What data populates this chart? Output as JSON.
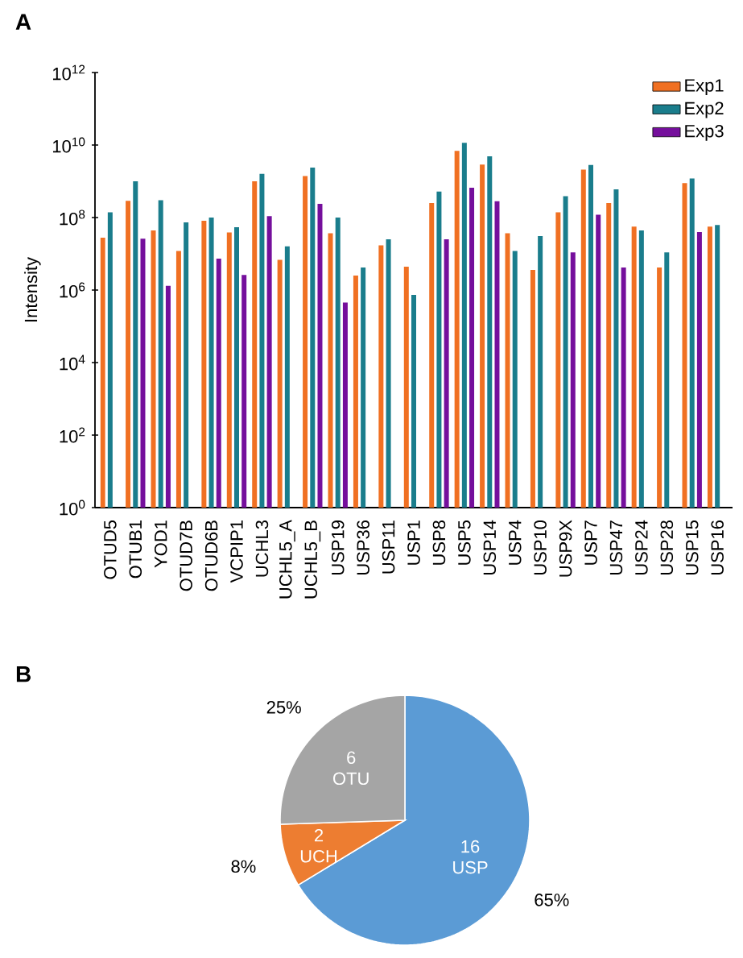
{
  "chart_data": [
    {
      "type": "bar",
      "title": "A",
      "ylabel": "Intensity",
      "log": "y",
      "legend": "top right",
      "categories": [
        "OTUD5",
        "OTUB1",
        "YOD1",
        "OTUD7B",
        "OTUD6B",
        "VCPIP1",
        "UCHL3",
        "UCHL5_A",
        "UCHL5_B",
        "USP19",
        "USP36",
        "USP11",
        "USP1",
        "USP8",
        "USP5",
        "USP14",
        "USP4",
        "USP10",
        "USP9X",
        "USP7",
        "USP47",
        "USP24",
        "USP28",
        "USP15",
        "USP16"
      ],
      "ylim": [
        1,
        1000000000000.0
      ],
      "yticks": [
        {
          "value": 1,
          "label": "10$^{0}$"
        },
        {
          "value": 100,
          "label": "10$^{2}$"
        },
        {
          "value": 10000,
          "label": "10$^{4}$"
        },
        {
          "value": 1000000,
          "label": "10$^{6}$"
        },
        {
          "value": 100000000,
          "label": "10$^{8}$"
        },
        {
          "value": 10000000000,
          "label": "10$^{10}$"
        },
        {
          "value": 1000000000000,
          "label": "10$^{12}$"
        }
      ],
      "series": [
        {
          "name": "Exp1",
          "color": "#f07022",
          "values": [
            28000000.0,
            290000000.0,
            44000000.0,
            12000000.0,
            81000000.0,
            39000000.0,
            1000000000.0,
            6800000.0,
            1400000000.0,
            37000000.0,
            2500000.0,
            17000000.0,
            4400000.0,
            250000000.0,
            6900000000.0,
            2900000000.0,
            37000000.0,
            3600000.0,
            140000000.0,
            2100000000.0,
            250000000.0,
            56000000.0,
            4200000.0,
            890000000.0,
            56000000.0
          ]
        },
        {
          "name": "Exp2",
          "color": "#1a7d8c",
          "values": [
            140000000.0,
            1000000000.0,
            300000000.0,
            74000000.0,
            100000000.0,
            54000000.0,
            1600000000.0,
            16000000.0,
            2400000000.0,
            100000000.0,
            4200000.0,
            25000000.0,
            740000.0,
            520000000.0,
            11500000000.0,
            4900000000.0,
            12000000.0,
            31000000.0,
            390000000.0,
            2800000000.0,
            600000000.0,
            44000000.0,
            11000000.0,
            1200000000.0,
            62000000.0
          ]
        },
        {
          "name": "Exp3",
          "color": "#750f9c",
          "values": [
            null,
            26000000.0,
            1300000.0,
            null,
            7400000.0,
            2600000.0,
            110000000.0,
            null,
            240000000.0,
            450000.0,
            null,
            null,
            null,
            25000000.0,
            660000000.0,
            280000000.0,
            null,
            null,
            11000000.0,
            120000000.0,
            4200000.0,
            null,
            null,
            40000000.0,
            null
          ]
        }
      ]
    },
    {
      "type": "pie",
      "title": "B",
      "categories": [
        "USP",
        "UCH",
        "OTU"
      ],
      "values": [
        65,
        8,
        25
      ],
      "colors": [
        "#5b9bd5",
        "#ed7d31",
        "#a5a5a5"
      ],
      "value_labels": [
        "65%",
        "8%",
        "25%"
      ],
      "annotations": [
        "16",
        "2",
        "6"
      ]
    }
  ]
}
